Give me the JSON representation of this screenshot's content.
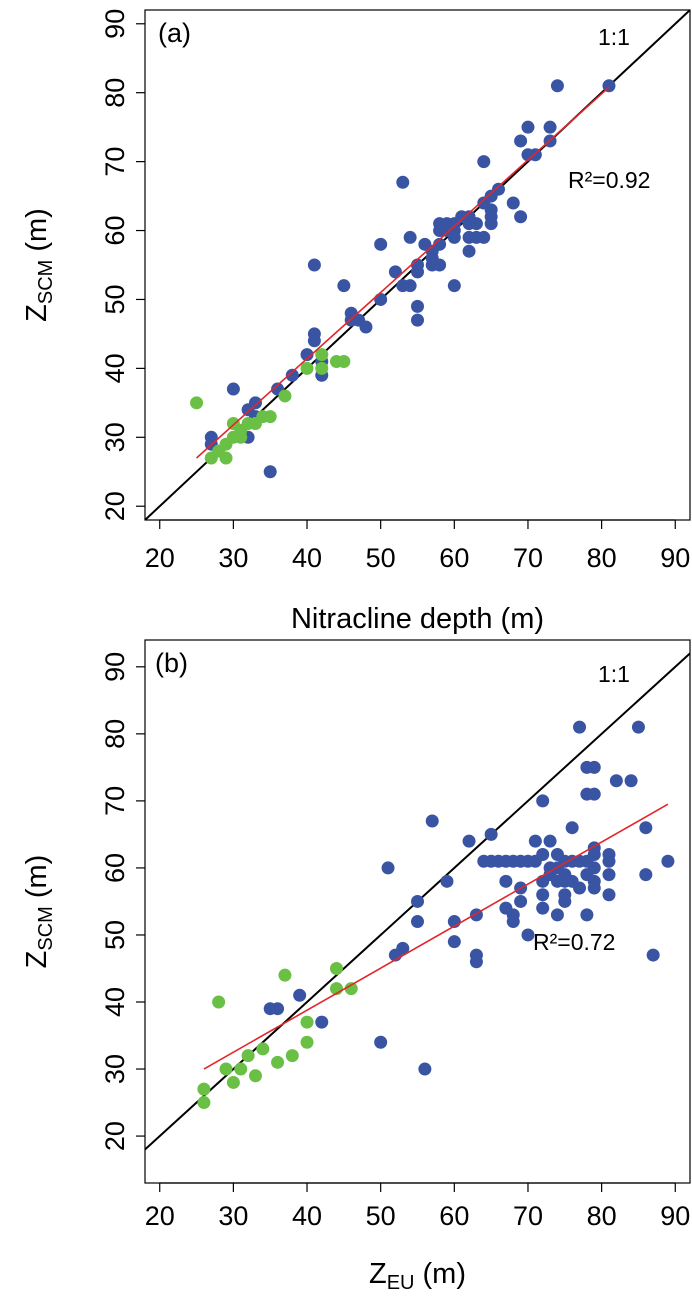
{
  "chart_data": [
    {
      "type": "scatter",
      "panel_label": "(a)",
      "reference_label": "1:1",
      "annotation": "R²=0.92",
      "xlabel": "Nitracline depth (m)",
      "ylabel_parts": [
        "Z",
        "SCM",
        "(m)"
      ],
      "xlim": [
        18,
        92
      ],
      "ylim": [
        18,
        92
      ],
      "xticks": [
        20,
        30,
        40,
        50,
        60,
        70,
        80,
        90
      ],
      "yticks": [
        20,
        30,
        40,
        50,
        60,
        70,
        80,
        90
      ],
      "reference_color": "#000000",
      "series": [
        {
          "color": "#3a54a4",
          "x": [
            27,
            27,
            32,
            32,
            33,
            33,
            35,
            30,
            36,
            38,
            40,
            41,
            41,
            41,
            42,
            42,
            45,
            46,
            46,
            47,
            48,
            50,
            50,
            52,
            53,
            53,
            54,
            54,
            55,
            55,
            55,
            55,
            56,
            57,
            57,
            58,
            58,
            58,
            58,
            59,
            59,
            60,
            60,
            60,
            60,
            61,
            62,
            62,
            62,
            62,
            63,
            63,
            64,
            64,
            64,
            65,
            65,
            65,
            66,
            68,
            69,
            69,
            70,
            70,
            71,
            73,
            73,
            74,
            81,
            65,
            57
          ],
          "y": [
            30,
            29,
            34,
            30,
            35,
            33,
            25,
            37,
            37,
            39,
            42,
            45,
            44,
            55,
            39,
            41,
            52,
            48,
            47,
            47,
            46,
            58,
            50,
            54,
            67,
            52,
            59,
            52,
            55,
            54,
            49,
            47,
            58,
            57,
            56,
            61,
            60,
            58,
            55,
            61,
            60,
            61,
            60,
            59,
            52,
            62,
            62,
            61,
            59,
            57,
            61,
            59,
            70,
            64,
            59,
            65,
            62,
            61,
            66,
            64,
            73,
            62,
            75,
            71,
            71,
            75,
            73,
            81,
            81,
            63,
            55
          ]
        },
        {
          "color": "#6abf45",
          "x": [
            25,
            27,
            28,
            29,
            29,
            30,
            30,
            31,
            32,
            33,
            34,
            35,
            37,
            40,
            42,
            42,
            44,
            45,
            31
          ],
          "y": [
            35,
            27,
            28,
            27,
            29,
            30,
            32,
            31,
            32,
            32,
            33,
            33,
            36,
            40,
            40,
            42,
            41,
            41,
            30
          ]
        }
      ],
      "fit": {
        "color": "#e3262b",
        "x": [
          25,
          81
        ],
        "y": [
          27,
          80.8
        ]
      }
    },
    {
      "type": "scatter",
      "panel_label": "(b)",
      "reference_label": "1:1",
      "annotation": "R²=0.72",
      "xlabel_parts": [
        "Z",
        "EU",
        "(m)"
      ],
      "ylabel_parts": [
        "Z",
        "SCM",
        "(m)"
      ],
      "xlim": [
        18,
        92
      ],
      "ylim": [
        13,
        94
      ],
      "xticks": [
        20,
        30,
        40,
        50,
        60,
        70,
        80,
        90
      ],
      "yticks": [
        20,
        30,
        40,
        50,
        60,
        70,
        80,
        90
      ],
      "reference_color": "#000000",
      "series": [
        {
          "color": "#3a54a4",
          "x": [
            35,
            36,
            39,
            42,
            50,
            51,
            52,
            53,
            55,
            55,
            56,
            57,
            59,
            60,
            60,
            62,
            63,
            63,
            63,
            64,
            65,
            65,
            66,
            67,
            67,
            67,
            68,
            68,
            68,
            69,
            69,
            69,
            70,
            70,
            71,
            71,
            72,
            72,
            72,
            72,
            72,
            73,
            73,
            73,
            74,
            74,
            74,
            75,
            75,
            75,
            76,
            76,
            76,
            77,
            77,
            77,
            78,
            78,
            78,
            78,
            78,
            79,
            79,
            79,
            79,
            79,
            79,
            79,
            81,
            81,
            81,
            81,
            82,
            84,
            85,
            86,
            86,
            87,
            89,
            75,
            75,
            74
          ],
          "y": [
            39,
            39,
            41,
            37,
            34,
            60,
            47,
            48,
            55,
            52,
            30,
            67,
            58,
            52,
            49,
            64,
            53,
            47,
            46,
            61,
            65,
            61,
            61,
            58,
            54,
            61,
            61,
            52,
            53,
            61,
            57,
            55,
            61,
            50,
            61,
            64,
            70,
            62,
            58,
            56,
            54,
            60,
            59,
            64,
            60,
            58,
            53,
            61,
            59,
            58,
            66,
            61,
            58,
            81,
            61,
            57,
            75,
            71,
            61,
            59,
            53,
            75,
            71,
            63,
            62,
            60,
            58,
            57,
            62,
            61,
            59,
            56,
            73,
            73,
            81,
            66,
            59,
            47,
            61,
            56,
            55,
            62
          ]
        },
        {
          "color": "#6abf45",
          "x": [
            26,
            26,
            28,
            29,
            30,
            31,
            32,
            33,
            34,
            36,
            37,
            38,
            40,
            40,
            44,
            44,
            46
          ],
          "y": [
            27,
            25,
            40,
            30,
            28,
            30,
            32,
            29,
            33,
            31,
            44,
            32,
            37,
            34,
            45,
            42,
            42
          ]
        }
      ],
      "fit": {
        "color": "#e3262b",
        "x": [
          26,
          89
        ],
        "y": [
          30,
          69.5
        ]
      }
    }
  ]
}
